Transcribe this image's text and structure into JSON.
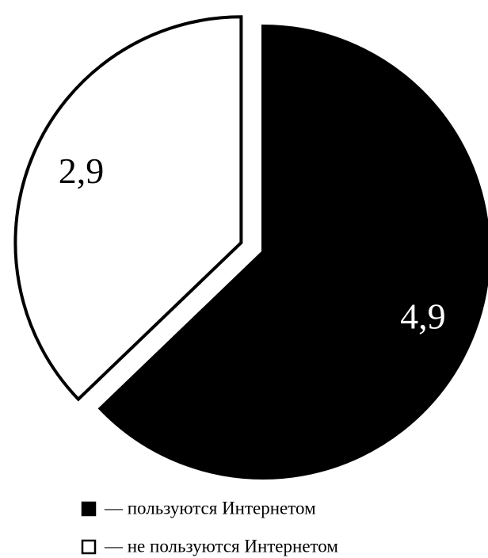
{
  "chart_data": {
    "type": "pie",
    "categories": [
      "— пользуются Интернетом",
      "— не пользуются Интернетом"
    ],
    "values": [
      4.9,
      2.9
    ],
    "value_labels": [
      "4,9",
      "2,9"
    ],
    "colors": [
      "#000000",
      "#ffffff"
    ],
    "legend": "bottom"
  }
}
